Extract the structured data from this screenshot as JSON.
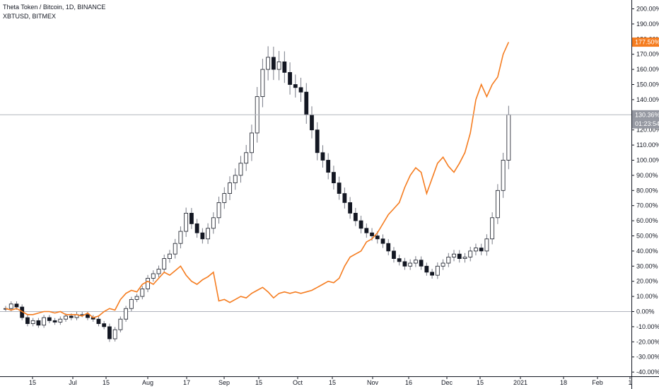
{
  "legend": {
    "main_symbol": "Theta Token / Bitcoin, 1D, BINANCE",
    "compare_symbol": "XBTUSD, BITMEX"
  },
  "colors": {
    "compare_line": "#f57c1f",
    "candle_body": "#131722",
    "candle_wick": "#787b86",
    "zero_line": "#b2b5be",
    "last_price_line": "#b2b5be",
    "axis_border": "#131722",
    "badge_main_bg": "#9598a1",
    "badge_compare_bg": "#f57c1f"
  },
  "chart_data": {
    "type": "line",
    "y_unit": "%",
    "ylim": [
      -40,
      205
    ],
    "y_ticks": [
      "200.00%",
      "190.00%",
      "180.00%",
      "170.00%",
      "160.00%",
      "150.00%",
      "140.00%",
      "130.00%",
      "120.00%",
      "110.00%",
      "100.00%",
      "90.00%",
      "80.00%",
      "70.00%",
      "60.00%",
      "50.00%",
      "40.00%",
      "30.00%",
      "20.00%",
      "10.00%",
      "0.00%",
      "-10.00%",
      "-20.00%",
      "-30.00%",
      "-40.00%"
    ],
    "x_ticks": [
      "15",
      "Jul",
      "15",
      "Aug",
      "17",
      "Sep",
      "15",
      "Oct",
      "15",
      "Nov",
      "16",
      "Dec",
      "15",
      "2021",
      "18",
      "Feb",
      "1"
    ],
    "grid": false,
    "last_values": {
      "compare_label": "177.50%",
      "main_label": "130.36%",
      "countdown_label": "01:23:54"
    },
    "series": [
      {
        "style": "candlestick",
        "points": [
          [
            0,
            2
          ],
          [
            4,
            5
          ],
          [
            8,
            3
          ],
          [
            12,
            -4
          ],
          [
            16,
            -8
          ],
          [
            20,
            -6
          ],
          [
            24,
            -9
          ],
          [
            28,
            -4
          ],
          [
            32,
            -6
          ],
          [
            36,
            -7
          ],
          [
            40,
            -5
          ],
          [
            44,
            -3
          ],
          [
            48,
            -4
          ],
          [
            52,
            -2
          ],
          [
            56,
            -2
          ],
          [
            60,
            -4
          ],
          [
            64,
            -5
          ],
          [
            68,
            -8
          ],
          [
            72,
            -10
          ],
          [
            76,
            -18
          ],
          [
            80,
            -12
          ],
          [
            84,
            -5
          ],
          [
            88,
            2
          ],
          [
            92,
            8
          ],
          [
            96,
            10
          ],
          [
            100,
            15
          ],
          [
            104,
            22
          ],
          [
            108,
            25
          ],
          [
            112,
            28
          ],
          [
            116,
            35
          ],
          [
            120,
            38
          ],
          [
            124,
            45
          ],
          [
            128,
            53
          ],
          [
            132,
            65
          ],
          [
            136,
            58
          ],
          [
            140,
            52
          ],
          [
            144,
            48
          ],
          [
            148,
            55
          ],
          [
            152,
            62
          ],
          [
            156,
            72
          ],
          [
            160,
            78
          ],
          [
            164,
            85
          ],
          [
            168,
            90
          ],
          [
            172,
            98
          ],
          [
            176,
            105
          ],
          [
            180,
            118
          ],
          [
            184,
            142
          ],
          [
            188,
            160
          ],
          [
            192,
            168
          ],
          [
            196,
            160
          ],
          [
            200,
            165
          ],
          [
            204,
            158
          ],
          [
            208,
            150
          ],
          [
            212,
            148
          ],
          [
            216,
            145
          ],
          [
            220,
            130
          ],
          [
            224,
            120
          ],
          [
            228,
            105
          ],
          [
            232,
            100
          ],
          [
            236,
            92
          ],
          [
            240,
            85
          ],
          [
            244,
            78
          ],
          [
            248,
            72
          ],
          [
            252,
            65
          ],
          [
            256,
            60
          ],
          [
            260,
            55
          ],
          [
            264,
            52
          ],
          [
            268,
            50
          ],
          [
            272,
            48
          ],
          [
            276,
            45
          ],
          [
            280,
            40
          ],
          [
            284,
            35
          ],
          [
            288,
            33
          ],
          [
            292,
            30
          ],
          [
            296,
            32
          ],
          [
            300,
            34
          ],
          [
            304,
            30
          ],
          [
            308,
            26
          ],
          [
            312,
            24
          ],
          [
            316,
            30
          ],
          [
            320,
            32
          ],
          [
            324,
            36
          ],
          [
            328,
            38
          ],
          [
            332,
            35
          ],
          [
            336,
            36
          ],
          [
            340,
            40
          ],
          [
            344,
            42
          ],
          [
            348,
            40
          ],
          [
            352,
            48
          ],
          [
            356,
            62
          ],
          [
            360,
            80
          ],
          [
            364,
            100
          ],
          [
            368,
            130
          ]
        ]
      },
      {
        "style": "line",
        "points": [
          [
            0,
            2
          ],
          [
            4,
            1
          ],
          [
            8,
            2
          ],
          [
            12,
            0
          ],
          [
            16,
            -2
          ],
          [
            20,
            -2
          ],
          [
            24,
            -1
          ],
          [
            28,
            0
          ],
          [
            32,
            0
          ],
          [
            36,
            -1
          ],
          [
            40,
            0
          ],
          [
            44,
            -2
          ],
          [
            48,
            -2
          ],
          [
            52,
            -2
          ],
          [
            56,
            -3
          ],
          [
            60,
            -1
          ],
          [
            64,
            -4
          ],
          [
            68,
            -3
          ],
          [
            72,
            0
          ],
          [
            76,
            2
          ],
          [
            80,
            1
          ],
          [
            84,
            8
          ],
          [
            88,
            12
          ],
          [
            92,
            14
          ],
          [
            96,
            13
          ],
          [
            100,
            18
          ],
          [
            104,
            20
          ],
          [
            108,
            18
          ],
          [
            112,
            22
          ],
          [
            116,
            26
          ],
          [
            120,
            24
          ],
          [
            124,
            27
          ],
          [
            128,
            30
          ],
          [
            132,
            24
          ],
          [
            136,
            20
          ],
          [
            140,
            18
          ],
          [
            144,
            21
          ],
          [
            148,
            23
          ],
          [
            152,
            26
          ],
          [
            156,
            7
          ],
          [
            160,
            8
          ],
          [
            164,
            6
          ],
          [
            168,
            8
          ],
          [
            172,
            10
          ],
          [
            176,
            9
          ],
          [
            180,
            12
          ],
          [
            184,
            14
          ],
          [
            188,
            16
          ],
          [
            192,
            13
          ],
          [
            196,
            9
          ],
          [
            200,
            12
          ],
          [
            204,
            13
          ],
          [
            208,
            12
          ],
          [
            212,
            13
          ],
          [
            216,
            12
          ],
          [
            220,
            13
          ],
          [
            224,
            14
          ],
          [
            228,
            16
          ],
          [
            232,
            18
          ],
          [
            236,
            20
          ],
          [
            240,
            19
          ],
          [
            244,
            22
          ],
          [
            248,
            30
          ],
          [
            252,
            36
          ],
          [
            256,
            38
          ],
          [
            260,
            40
          ],
          [
            264,
            46
          ],
          [
            268,
            48
          ],
          [
            272,
            52
          ],
          [
            276,
            58
          ],
          [
            280,
            64
          ],
          [
            284,
            68
          ],
          [
            288,
            72
          ],
          [
            292,
            82
          ],
          [
            296,
            90
          ],
          [
            300,
            95
          ],
          [
            304,
            92
          ],
          [
            308,
            78
          ],
          [
            312,
            88
          ],
          [
            316,
            98
          ],
          [
            320,
            102
          ],
          [
            324,
            96
          ],
          [
            328,
            92
          ],
          [
            332,
            98
          ],
          [
            336,
            105
          ],
          [
            340,
            118
          ],
          [
            344,
            140
          ],
          [
            348,
            150
          ],
          [
            352,
            142
          ],
          [
            356,
            150
          ],
          [
            360,
            155
          ],
          [
            364,
            170
          ],
          [
            368,
            178
          ]
        ]
      }
    ]
  }
}
